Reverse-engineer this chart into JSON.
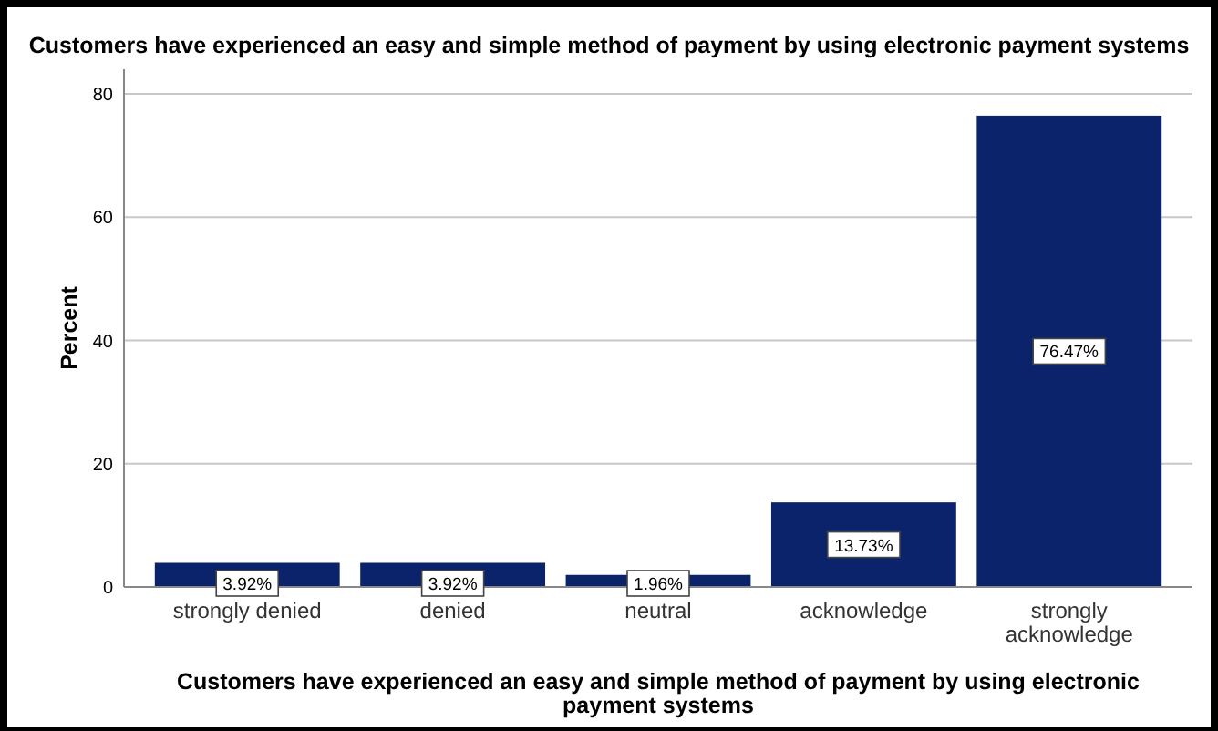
{
  "chart_data": {
    "type": "bar",
    "title": "Customers have experienced an easy and simple method of payment by using electronic payment systems",
    "xlabel": "Customers have experienced an easy and simple method of payment by using electronic payment systems",
    "ylabel": "Percent",
    "categories": [
      "strongly denied",
      "denied",
      "neutral",
      "acknowledge",
      "strongly acknowledge"
    ],
    "values": [
      3.92,
      3.92,
      1.96,
      13.73,
      76.47
    ],
    "value_labels": [
      "3.92%",
      "3.92%",
      "1.96%",
      "13.73%",
      "76.47%"
    ],
    "color": "#0b236b",
    "ylim": [
      0,
      84
    ],
    "yticks": [
      0,
      20,
      40,
      60,
      80
    ],
    "grid": "y"
  }
}
